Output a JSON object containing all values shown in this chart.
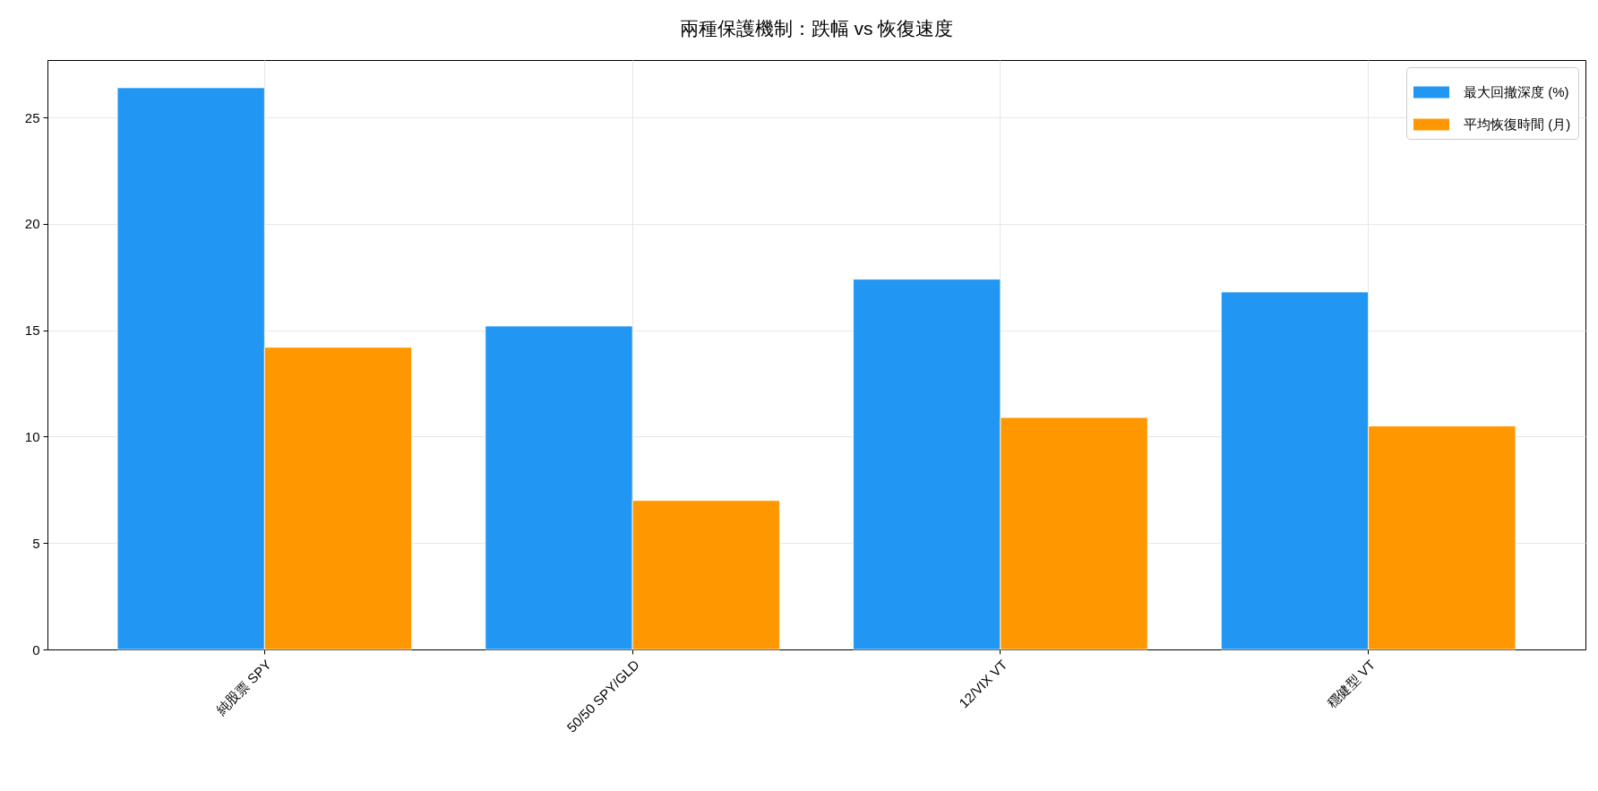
{
  "chart_data": {
    "type": "bar",
    "title": "兩種保護機制：跌幅 vs 恢復速度",
    "categories": [
      "純股票 SPY",
      "50/50 SPY/GLD",
      "12/VIX VT",
      "穩健型 VT"
    ],
    "series": [
      {
        "name": "最大回撤深度 (%)",
        "color": "#2196f3",
        "values": [
          26.4,
          15.2,
          17.4,
          16.8
        ]
      },
      {
        "name": "平均恢復時間 (月)",
        "color": "#ff9800",
        "values": [
          14.2,
          7.0,
          10.9,
          10.5
        ]
      }
    ],
    "ylim": [
      0,
      27.7
    ],
    "yticks": [
      0,
      5,
      10,
      15,
      20,
      25
    ],
    "grid": true,
    "legend": "top right"
  }
}
